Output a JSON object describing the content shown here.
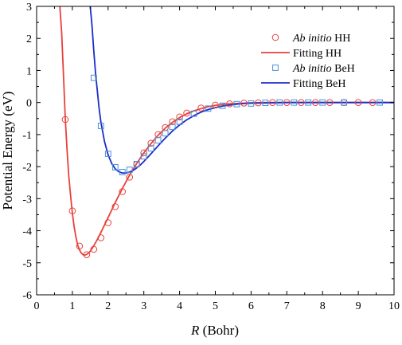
{
  "chart_data": {
    "type": "line",
    "xlabel_italic": "R",
    "xlabel_rest": " (Bohr)",
    "ylabel": "Potential Energy (eV)",
    "xlim": [
      0,
      10
    ],
    "ylim": [
      -6,
      3
    ],
    "xticks": [
      0,
      1,
      2,
      3,
      4,
      5,
      6,
      7,
      8,
      9,
      10
    ],
    "yticks": [
      -6,
      -5,
      -4,
      -3,
      -2,
      -1,
      0,
      1,
      2,
      3
    ],
    "grid": false,
    "legend_position": "top-right",
    "legend": [
      {
        "italic": "Ab initio",
        "rest": " HH",
        "kind": "circle",
        "color": "#e8413c"
      },
      {
        "italic": "",
        "rest": "Fitting HH",
        "kind": "line",
        "color": "#e8413c"
      },
      {
        "italic": "Ab initio",
        "rest": " BeH",
        "kind": "square",
        "color": "#4a8fd9"
      },
      {
        "italic": "",
        "rest": "Fitting BeH",
        "kind": "line",
        "color": "#1a2ec8"
      }
    ],
    "series": [
      {
        "name": "Ab initio HH",
        "kind": "scatter",
        "marker": "circle",
        "color": "#e8413c",
        "x": [
          0.8,
          1.0,
          1.2,
          1.4,
          1.6,
          1.8,
          2.0,
          2.2,
          2.4,
          2.6,
          2.8,
          3.0,
          3.2,
          3.4,
          3.6,
          3.8,
          4.0,
          4.2,
          4.6,
          5.0,
          5.4,
          5.8,
          6.2,
          6.6,
          7.0,
          7.4,
          7.8,
          8.2,
          8.6,
          9.0,
          9.4
        ],
        "y": [
          -0.53,
          -3.38,
          -4.48,
          -4.75,
          -4.58,
          -4.22,
          -3.75,
          -3.25,
          -2.78,
          -2.33,
          -1.93,
          -1.57,
          -1.27,
          -1.0,
          -0.78,
          -0.6,
          -0.45,
          -0.33,
          -0.17,
          -0.08,
          -0.04,
          -0.02,
          -0.01,
          0.0,
          0.0,
          0.0,
          0.0,
          0.0,
          0.0,
          0.0,
          0.0
        ]
      },
      {
        "name": "Fitting HH",
        "kind": "line",
        "color": "#e8413c",
        "x": [
          0.65,
          0.7,
          0.75,
          0.8,
          0.85,
          0.9,
          0.95,
          1.0,
          1.05,
          1.1,
          1.15,
          1.2,
          1.25,
          1.3,
          1.35,
          1.4,
          1.45,
          1.5,
          1.6,
          1.7,
          1.8,
          1.9,
          2.0,
          2.2,
          2.4,
          2.6,
          2.8,
          3.0,
          3.2,
          3.4,
          3.6,
          3.8,
          4.0,
          4.2,
          4.4,
          4.6,
          4.8,
          5.0,
          5.2,
          5.4,
          5.6,
          5.8,
          6.0,
          6.5,
          7.0,
          7.5,
          8.0,
          8.5,
          9.0,
          9.5,
          10.0
        ],
        "y": [
          3.0,
          2.2,
          0.9,
          -0.45,
          -1.45,
          -2.3,
          -2.9,
          -3.45,
          -3.88,
          -4.2,
          -4.45,
          -4.6,
          -4.7,
          -4.75,
          -4.76,
          -4.74,
          -4.7,
          -4.64,
          -4.47,
          -4.27,
          -4.05,
          -3.82,
          -3.59,
          -3.12,
          -2.68,
          -2.27,
          -1.9,
          -1.57,
          -1.28,
          -1.02,
          -0.8,
          -0.62,
          -0.47,
          -0.35,
          -0.26,
          -0.19,
          -0.13,
          -0.09,
          -0.06,
          -0.04,
          -0.03,
          -0.02,
          -0.01,
          0.0,
          0.0,
          0.0,
          0.0,
          0.0,
          0.0,
          0.0,
          0.0
        ]
      },
      {
        "name": "Ab initio BeH",
        "kind": "scatter",
        "marker": "square",
        "color": "#4a8fd9",
        "x": [
          1.6,
          1.8,
          2.0,
          2.2,
          2.4,
          2.6,
          2.8,
          3.0,
          3.2,
          3.4,
          3.6,
          3.8,
          4.0,
          4.4,
          4.8,
          5.2,
          5.6,
          6.0,
          6.4,
          6.8,
          7.2,
          7.6,
          8.0,
          8.6,
          9.6
        ],
        "y": [
          0.77,
          -0.73,
          -1.6,
          -2.02,
          -2.17,
          -2.1,
          -1.92,
          -1.68,
          -1.43,
          -1.18,
          -0.96,
          -0.76,
          -0.6,
          -0.35,
          -0.19,
          -0.1,
          -0.05,
          -0.03,
          -0.01,
          0.0,
          0.0,
          0.0,
          0.0,
          0.0,
          0.0
        ]
      },
      {
        "name": "Fitting BeH",
        "kind": "line",
        "color": "#1a2ec8",
        "x": [
          1.5,
          1.55,
          1.6,
          1.65,
          1.7,
          1.75,
          1.8,
          1.9,
          2.0,
          2.1,
          2.2,
          2.3,
          2.4,
          2.5,
          2.6,
          2.7,
          2.8,
          2.9,
          3.0,
          3.2,
          3.4,
          3.6,
          3.8,
          4.0,
          4.2,
          4.4,
          4.6,
          4.8,
          5.0,
          5.2,
          5.4,
          5.6,
          5.8,
          6.0,
          6.5,
          7.0,
          7.5,
          8.0,
          8.5,
          9.0,
          9.5,
          10.0
        ],
        "y": [
          3.0,
          2.4,
          1.6,
          0.9,
          0.35,
          -0.2,
          -0.62,
          -1.22,
          -1.63,
          -1.9,
          -2.07,
          -2.16,
          -2.2,
          -2.2,
          -2.17,
          -2.12,
          -2.04,
          -1.95,
          -1.84,
          -1.6,
          -1.35,
          -1.11,
          -0.89,
          -0.7,
          -0.54,
          -0.41,
          -0.3,
          -0.22,
          -0.16,
          -0.11,
          -0.08,
          -0.05,
          -0.03,
          -0.02,
          -0.01,
          0.0,
          0.0,
          0.0,
          0.0,
          0.0,
          0.0,
          0.0
        ]
      }
    ]
  }
}
